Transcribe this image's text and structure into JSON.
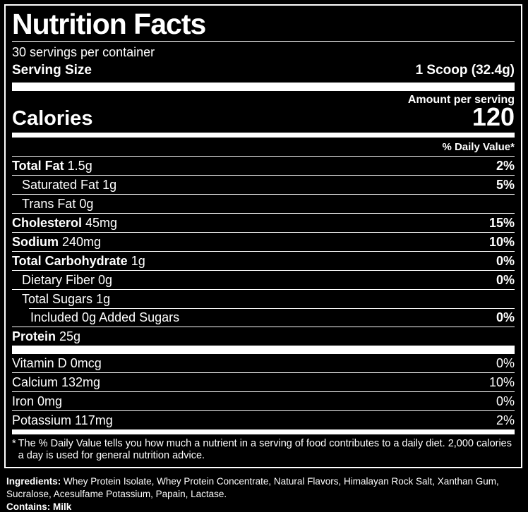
{
  "colors": {
    "background": "#000000",
    "text": "#ffffff"
  },
  "label": {
    "title": "Nutrition Facts",
    "servings_per_container": "30 servings per container",
    "serving_size_label": "Serving Size",
    "serving_size_value": "1 Scoop (32.4g)",
    "amount_per_serving": "Amount per serving",
    "calories_label": "Calories",
    "calories_value": "120",
    "daily_value_header": "% Daily Value*"
  },
  "nutrients": [
    {
      "name": "Total Fat",
      "amount": "1.5g",
      "dv": "2%",
      "name_bold": true,
      "dv_bold": true,
      "indent": 0,
      "divider_indent": false
    },
    {
      "name": "Saturated Fat",
      "amount": "1g",
      "dv": "5%",
      "name_bold": false,
      "dv_bold": true,
      "indent": 1,
      "divider_indent": false
    },
    {
      "name": "Trans Fat",
      "amount": "0g",
      "dv": "",
      "name_bold": false,
      "dv_bold": true,
      "indent": 1,
      "divider_indent": false
    },
    {
      "name": "Cholesterol",
      "amount": "45mg",
      "dv": "15%",
      "name_bold": true,
      "dv_bold": true,
      "indent": 0,
      "divider_indent": false
    },
    {
      "name": "Sodium",
      "amount": "240mg",
      "dv": "10%",
      "name_bold": true,
      "dv_bold": true,
      "indent": 0,
      "divider_indent": false
    },
    {
      "name": "Total Carbohydrate",
      "amount": "1g",
      "dv": "0%",
      "name_bold": true,
      "dv_bold": true,
      "indent": 0,
      "divider_indent": false
    },
    {
      "name": "Dietary Fiber",
      "amount": "0g",
      "dv": "0%",
      "name_bold": false,
      "dv_bold": true,
      "indent": 1,
      "divider_indent": false
    },
    {
      "name": "Total Sugars",
      "amount": "1g",
      "dv": "",
      "name_bold": false,
      "dv_bold": true,
      "indent": 1,
      "divider_indent": false
    },
    {
      "name": "Included 0g Added Sugars",
      "amount": "",
      "dv": "0%",
      "name_bold": false,
      "dv_bold": true,
      "indent": 2,
      "divider_indent": true
    },
    {
      "name": "Protein",
      "amount": "25g",
      "dv": "",
      "name_bold": true,
      "dv_bold": true,
      "indent": 0,
      "divider_indent": false
    }
  ],
  "vitamins": [
    {
      "name": "Vitamin D",
      "amount": "0mcg",
      "dv": "0%",
      "name_bold": false,
      "dv_bold": false,
      "indent": 0,
      "divider_indent": false
    },
    {
      "name": "Calcium",
      "amount": "132mg",
      "dv": "10%",
      "name_bold": false,
      "dv_bold": false,
      "indent": 0,
      "divider_indent": false
    },
    {
      "name": "Iron",
      "amount": "0mg",
      "dv": "0%",
      "name_bold": false,
      "dv_bold": false,
      "indent": 0,
      "divider_indent": false
    },
    {
      "name": "Potassium",
      "amount": "117mg",
      "dv": "2%",
      "name_bold": false,
      "dv_bold": false,
      "indent": 0,
      "divider_indent": false
    }
  ],
  "footnote": {
    "marker": "*",
    "text": "The % Daily Value tells you how much a nutrient in a serving of food contributes to a daily diet. 2,000 calories a day is used for general nutrition advice."
  },
  "ingredients": {
    "label": "Ingredients:",
    "text": "Whey Protein Isolate, Whey Protein Concentrate, Natural Flavors, Himalayan Rock Salt, Xanthan Gum, Sucralose, Acesulfame Potassium, Papain, Lactase.",
    "contains_label": "Contains:",
    "contains_text": "Milk"
  }
}
